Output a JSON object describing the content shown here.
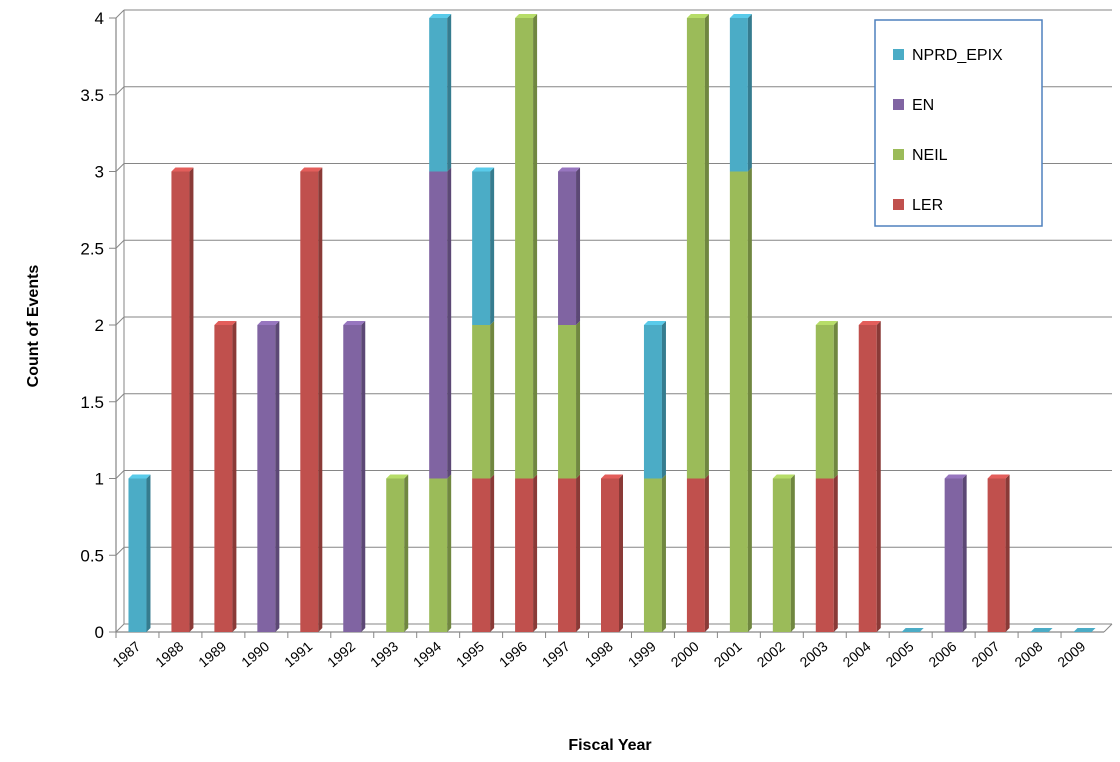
{
  "chart_data": {
    "type": "bar",
    "stacked": true,
    "style": "3d-columns",
    "title": "",
    "xlabel": "Fiscal Year",
    "ylabel": "Count of Events",
    "ylim": [
      0,
      4
    ],
    "ytick_step": 0.5,
    "ytick_labels": [
      "0",
      "0.5",
      "1",
      "1.5",
      "2",
      "2.5",
      "3",
      "3.5",
      "4"
    ],
    "grid": true,
    "legend_position": "top-right",
    "categories": [
      "1987",
      "1988",
      "1989",
      "1990",
      "1991",
      "1992",
      "1993",
      "1994",
      "1995",
      "1996",
      "1997",
      "1998",
      "1999",
      "2000",
      "2001",
      "2002",
      "2003",
      "2004",
      "2005",
      "2006",
      "2007",
      "2008",
      "2009"
    ],
    "series": [
      {
        "name": "LER",
        "color": "#C0504D",
        "values": [
          0,
          3,
          2,
          0,
          3,
          0,
          0,
          0,
          1,
          1,
          1,
          1,
          0,
          1,
          0,
          0,
          1,
          2,
          0,
          0,
          1,
          0,
          0
        ]
      },
      {
        "name": "NEIL",
        "color": "#9BBB59",
        "values": [
          0,
          0,
          0,
          0,
          0,
          0,
          1,
          1,
          1,
          3,
          1,
          0,
          1,
          3,
          3,
          1,
          1,
          0,
          0,
          0,
          0,
          0,
          0
        ]
      },
      {
        "name": "EN",
        "color": "#8064A2",
        "values": [
          0,
          0,
          0,
          2,
          0,
          2,
          0,
          2,
          0,
          0,
          1,
          0,
          0,
          0,
          0,
          0,
          0,
          0,
          0,
          1,
          0,
          0,
          0
        ]
      },
      {
        "name": "NPRD_EPIX",
        "color": "#4BACC6",
        "values": [
          1,
          0,
          0,
          0,
          0,
          0,
          0,
          1,
          1,
          0,
          0,
          0,
          1,
          0,
          1,
          0,
          0,
          0,
          0,
          0,
          0,
          0,
          0
        ]
      }
    ],
    "legend_order": [
      "NPRD_EPIX",
      "EN",
      "NEIL",
      "LER"
    ]
  }
}
